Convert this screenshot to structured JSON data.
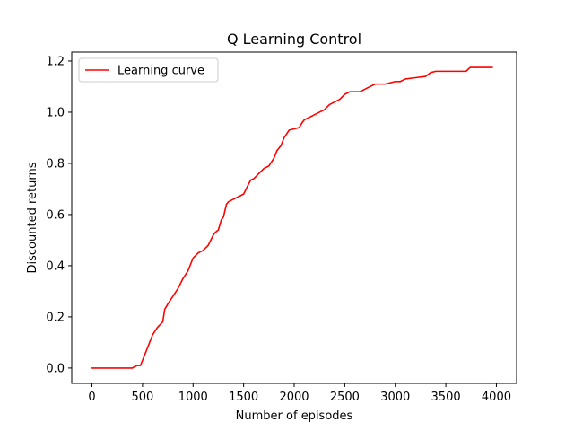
{
  "chart_data": {
    "type": "line",
    "title": "Q Learning Control",
    "xlabel": "Number of episodes",
    "ylabel": "Discounted returns",
    "xlim": [
      -200,
      4200
    ],
    "ylim": [
      -0.06,
      1.235
    ],
    "xticks": [
      0,
      500,
      1000,
      1500,
      2000,
      2500,
      3000,
      3500,
      4000
    ],
    "yticks": [
      0.0,
      0.2,
      0.4,
      0.6,
      0.8,
      1.0,
      1.2
    ],
    "xtick_labels": [
      "0",
      "500",
      "1000",
      "1500",
      "2000",
      "2500",
      "3000",
      "3500",
      "4000"
    ],
    "ytick_labels": [
      "0.0",
      "0.2",
      "0.4",
      "0.6",
      "0.8",
      "1.0",
      "1.2"
    ],
    "grid": false,
    "legend_position": "top-left",
    "series": [
      {
        "name": "Learning curve",
        "color": "#ff0000",
        "x": [
          0,
          100,
          200,
          300,
          400,
          420,
          450,
          480,
          500,
          520,
          550,
          600,
          650,
          700,
          720,
          750,
          800,
          850,
          900,
          950,
          1000,
          1050,
          1100,
          1150,
          1200,
          1220,
          1250,
          1280,
          1300,
          1330,
          1350,
          1400,
          1450,
          1500,
          1550,
          1570,
          1600,
          1650,
          1700,
          1750,
          1800,
          1830,
          1870,
          1900,
          1950,
          2000,
          2050,
          2080,
          2100,
          2150,
          2200,
          2250,
          2300,
          2350,
          2400,
          2450,
          2500,
          2550,
          2600,
          2650,
          2700,
          2750,
          2800,
          2900,
          3000,
          3050,
          3100,
          3200,
          3300,
          3350,
          3400,
          3500,
          3600,
          3700,
          3740,
          3800,
          3900,
          3960
        ],
        "y": [
          0.0,
          0.0,
          0.0,
          0.0,
          0.0,
          0.005,
          0.01,
          0.01,
          0.03,
          0.05,
          0.08,
          0.13,
          0.16,
          0.18,
          0.23,
          0.25,
          0.28,
          0.31,
          0.35,
          0.38,
          0.43,
          0.45,
          0.46,
          0.48,
          0.52,
          0.53,
          0.54,
          0.58,
          0.59,
          0.64,
          0.65,
          0.66,
          0.67,
          0.68,
          0.72,
          0.735,
          0.74,
          0.76,
          0.78,
          0.79,
          0.82,
          0.85,
          0.87,
          0.9,
          0.93,
          0.935,
          0.94,
          0.96,
          0.97,
          0.98,
          0.99,
          1.0,
          1.01,
          1.03,
          1.04,
          1.05,
          1.07,
          1.08,
          1.08,
          1.08,
          1.09,
          1.1,
          1.11,
          1.11,
          1.12,
          1.12,
          1.13,
          1.135,
          1.14,
          1.155,
          1.16,
          1.16,
          1.16,
          1.16,
          1.175,
          1.175,
          1.175,
          1.175
        ]
      }
    ]
  }
}
